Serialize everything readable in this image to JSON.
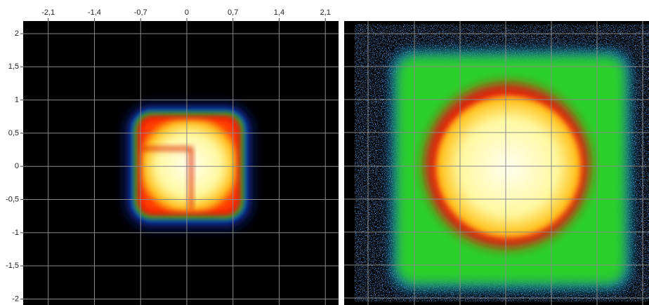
{
  "chart_data": {
    "type": "heatmap",
    "xlim": [
      -2.48,
      2.3
    ],
    "ylim": [
      -2.09,
      2.19
    ],
    "xticks": [
      {
        "value": -2.1,
        "label": "-2,1"
      },
      {
        "value": -1.4,
        "label": "-1,4"
      },
      {
        "value": -0.7,
        "label": "-0,7"
      },
      0,
      {
        "value": 0.7,
        "label": "0,7"
      },
      {
        "value": 1.4,
        "label": "1,4"
      },
      {
        "value": 2.1,
        "label": "2,1"
      }
    ],
    "yticks": [
      {
        "value": 2,
        "label": "2"
      },
      {
        "value": 1.5,
        "label": "1,5"
      },
      {
        "value": 1,
        "label": "1"
      },
      {
        "value": 0.5,
        "label": "0,5"
      },
      0,
      {
        "value": -0.5,
        "label": "-0,5"
      },
      {
        "value": -1,
        "label": "-1"
      },
      {
        "value": -1.5,
        "label": "-1,5"
      },
      {
        "value": -2,
        "label": "-2"
      }
    ],
    "grid": true
  }
}
